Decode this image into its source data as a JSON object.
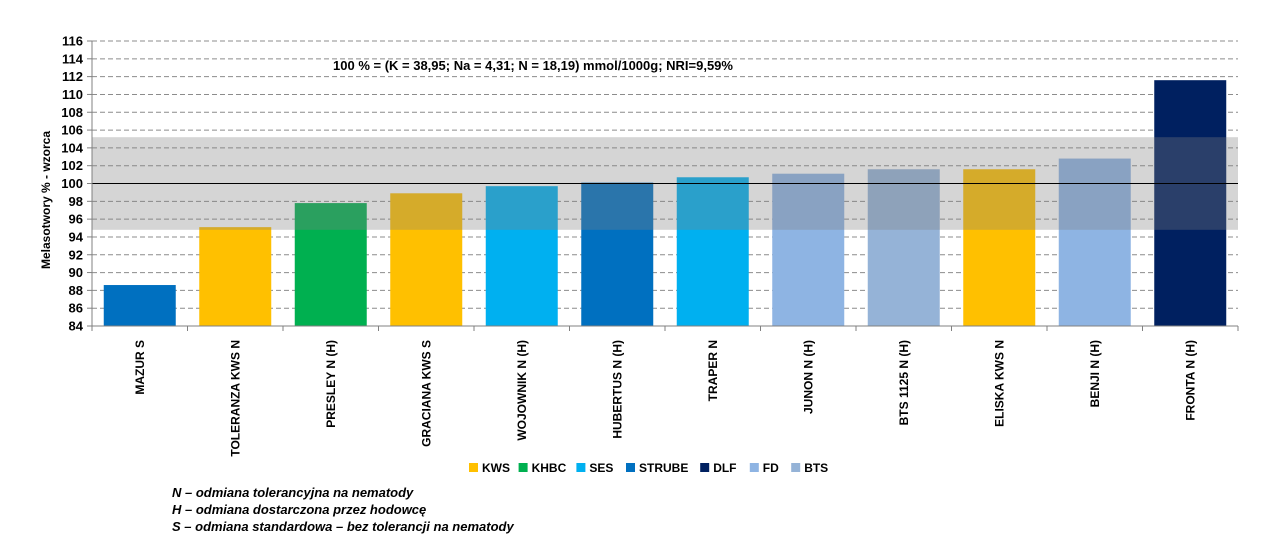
{
  "chart_data": {
    "type": "bar",
    "ylabel": "Melasotwory % - wzorca",
    "annotation": "100 % =  (K = 38,95; Na = 4,31; N = 18,19) mmol/1000g; NRI=9,59%",
    "ylim": [
      84,
      116
    ],
    "yticks": [
      84,
      86,
      88,
      90,
      92,
      94,
      96,
      98,
      100,
      102,
      104,
      106,
      108,
      110,
      112,
      114,
      116
    ],
    "grid": true,
    "reference_line": 100,
    "shaded_band": [
      94.8,
      105.2
    ],
    "categories": [
      "MAZUR S",
      "TOLERANZA KWS N",
      "PRESLEY N (H)",
      "GRACIANA KWS S",
      "WOJOWNIK N (H)",
      "HUBERTUS N (H)",
      "TRAPER N",
      "JUNON N (H)",
      "BTS 1125 N (H)",
      "ELISKA KWS N",
      "BENJI N (H)",
      "FRONTA N (H)"
    ],
    "values": [
      88.6,
      95.1,
      97.8,
      98.9,
      99.7,
      100.1,
      100.7,
      101.1,
      101.6,
      101.6,
      102.8,
      111.6
    ],
    "breeders": [
      "STRUBE",
      "KWS",
      "KHBC",
      "KWS",
      "SES",
      "STRUBE",
      "SES",
      "FD",
      "BTS",
      "KWS",
      "FD",
      "DLF"
    ],
    "legend": [
      {
        "name": "KWS",
        "color": "#FFC000"
      },
      {
        "name": "KHBC",
        "color": "#00B050"
      },
      {
        "name": "SES",
        "color": "#00B0F0"
      },
      {
        "name": "STRUBE",
        "color": "#0070C0"
      },
      {
        "name": "DLF",
        "color": "#002060"
      },
      {
        "name": "FD",
        "color": "#8EB4E3"
      },
      {
        "name": "BTS",
        "color": "#95B3D7"
      }
    ],
    "legend_position": "bottom"
  },
  "notes": [
    "N – odmiana tolerancyjna na nematody",
    "H – odmiana dostarczona przez hodowcę",
    "S – odmiana standardowa – bez tolerancji na nematody"
  ]
}
